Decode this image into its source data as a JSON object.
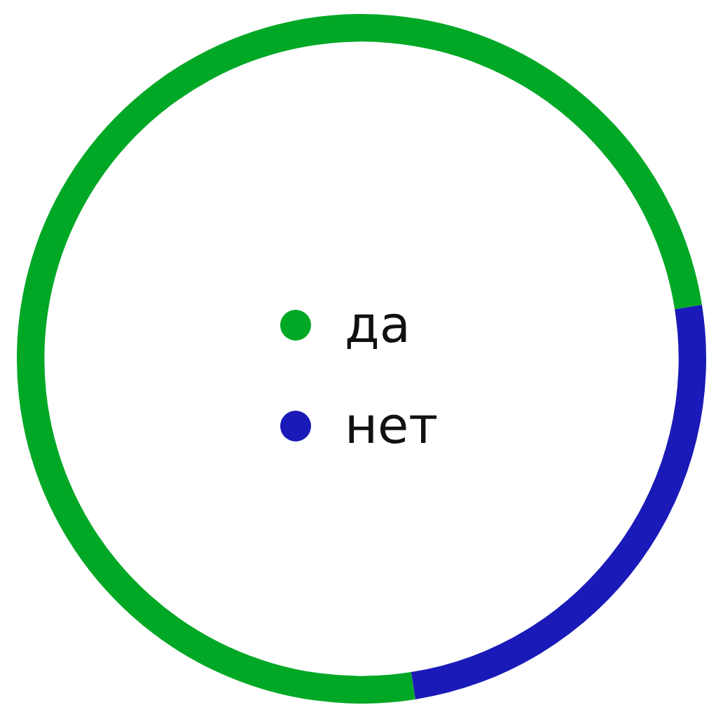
{
  "chart_data": {
    "type": "donut",
    "categories": [
      "да",
      "нет"
    ],
    "values": [
      75,
      25
    ],
    "colors": [
      "#00a825",
      "#1a1ab8"
    ],
    "legend": "center"
  }
}
